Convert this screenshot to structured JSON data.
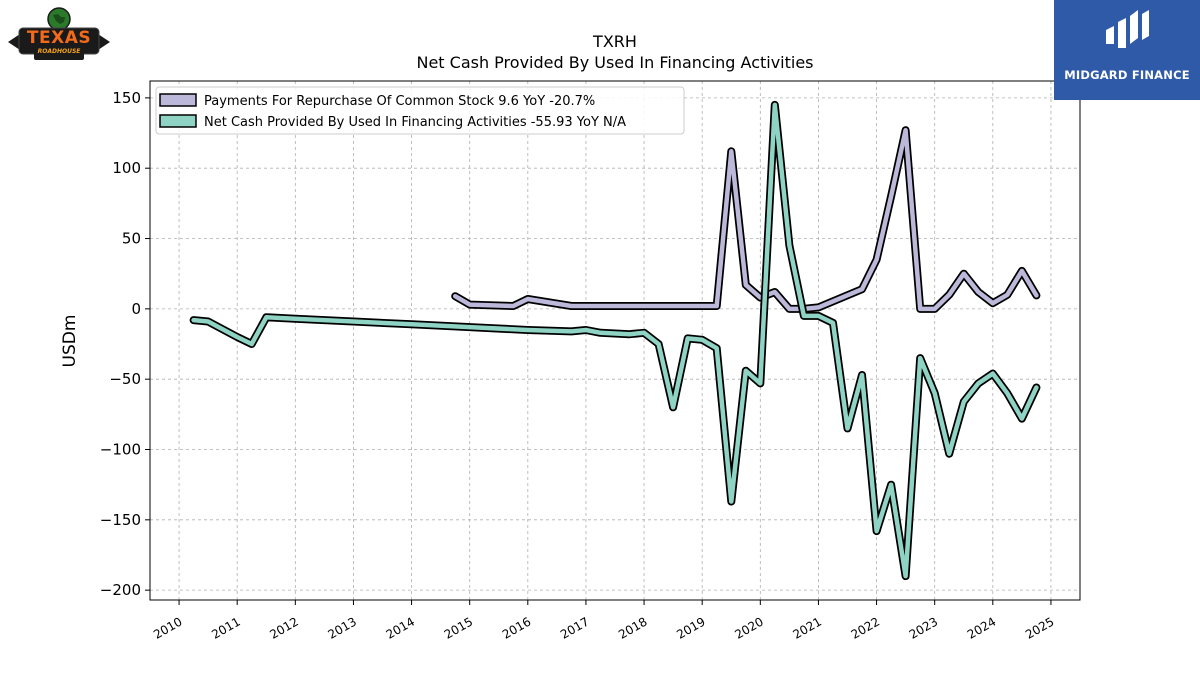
{
  "header": {
    "ticker": "TXRH",
    "subtitle": "Net Cash Provided By Used In Financing Activities"
  },
  "logo": {
    "word": "TEXAS",
    "sub": "ROADHOUSE"
  },
  "brand": {
    "text": "MIDGARD FINANCE",
    "color": "#2f5aa8"
  },
  "chart_data": {
    "type": "line",
    "title": "TXRH",
    "subtitle": "Net Cash Provided By Used In Financing Activities",
    "ylabel": "USDm",
    "xlabel": "",
    "xlim": [
      2009.5,
      2025.5
    ],
    "ylim": [
      -207,
      162
    ],
    "grid": true,
    "legend_position": "top-left",
    "x_ticks": [
      2010,
      2011,
      2012,
      2013,
      2014,
      2015,
      2016,
      2017,
      2018,
      2019,
      2020,
      2021,
      2022,
      2023,
      2024,
      2025
    ],
    "x_tick_labels": [
      "2010",
      "2011",
      "2012",
      "2013",
      "2014",
      "2015",
      "2016",
      "2017",
      "2018",
      "2019",
      "2020",
      "2021",
      "2022",
      "2023",
      "2024",
      "2025"
    ],
    "y_ticks": [
      150,
      100,
      50,
      0,
      -50,
      -100,
      -150,
      -200
    ],
    "y_tick_labels": [
      "150",
      "100",
      "50",
      "0",
      "−50",
      "−100",
      "−150",
      "−200"
    ],
    "series": [
      {
        "name": "Payments For Repurchase Of Common Stock",
        "legend_label": "Payments For Repurchase Of Common Stock  9.6 YoY -20.7%",
        "color": "#bcb8d9",
        "x": [
          2014.75,
          2015.0,
          2015.75,
          2016.0,
          2016.75,
          2017.0,
          2018.0,
          2019.0,
          2019.25,
          2019.5,
          2019.75,
          2020.0,
          2020.25,
          2020.5,
          2020.75,
          2021.0,
          2021.75,
          2022.0,
          2022.25,
          2022.5,
          2022.75,
          2023.0,
          2023.25,
          2023.5,
          2023.75,
          2024.0,
          2024.25,
          2024.5,
          2024.75
        ],
        "y": [
          9,
          3,
          2,
          7,
          2,
          2,
          2,
          2,
          2,
          112,
          17,
          8,
          12,
          0,
          0,
          1,
          14,
          35,
          80,
          127,
          0,
          0,
          10,
          25,
          12,
          4,
          10,
          27,
          9.6
        ]
      },
      {
        "name": "Net Cash Provided By Used In Financing Activities",
        "legend_label": "Net Cash Provided By Used In Financing Activities  -55.93 YoY N/A",
        "color": "#8ed3c3",
        "x": [
          2010.25,
          2010.5,
          2011.0,
          2011.25,
          2011.5,
          2012.0,
          2013.0,
          2014.0,
          2015.0,
          2016.0,
          2016.75,
          2017.0,
          2017.25,
          2017.75,
          2018.0,
          2018.25,
          2018.5,
          2018.75,
          2019.0,
          2019.25,
          2019.5,
          2019.75,
          2020.0,
          2020.25,
          2020.5,
          2020.75,
          2021.0,
          2021.25,
          2021.5,
          2021.75,
          2022.0,
          2022.25,
          2022.5,
          2022.75,
          2023.0,
          2023.25,
          2023.5,
          2023.75,
          2024.0,
          2024.25,
          2024.5,
          2024.75
        ],
        "y": [
          -8,
          -9,
          -20,
          -25,
          -6,
          -7,
          -9,
          -11,
          -13,
          -15,
          -16,
          -15,
          -17,
          -18,
          -17,
          -25,
          -70,
          -21,
          -22,
          -28,
          -137,
          -44,
          -53,
          145,
          45,
          -5,
          -5,
          -10,
          -85,
          -47,
          -158,
          -125,
          -190,
          -35,
          -60,
          -103,
          -66,
          -53,
          -46,
          -60,
          -78,
          -55.93
        ]
      }
    ]
  }
}
